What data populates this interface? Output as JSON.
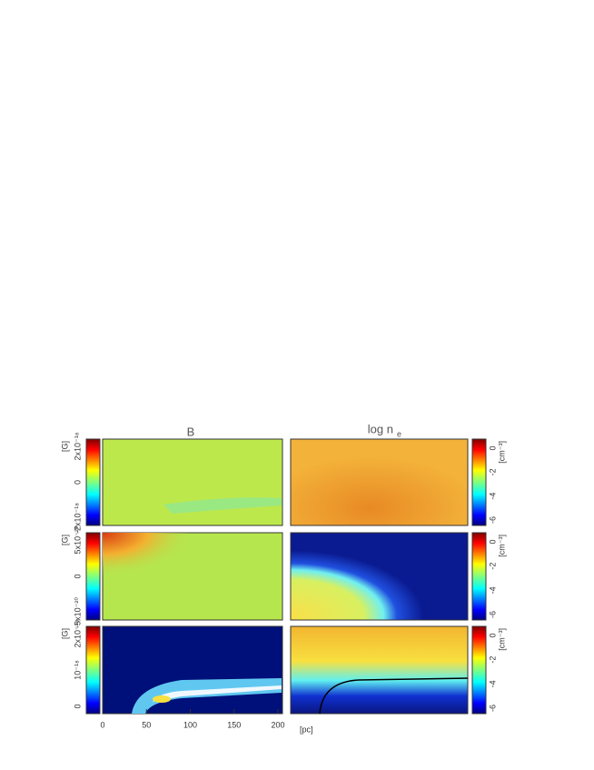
{
  "figure": {
    "titles": [
      "B",
      "log n",
      "e"
    ],
    "left_colorbars": [
      {
        "unit": "[G]",
        "labels": [
          "2x10⁻¹⁸",
          "0",
          "-2x10⁻¹⁸"
        ]
      },
      {
        "unit": "[G]",
        "labels": [
          "5x10⁻²⁰",
          "0",
          "-5x10⁻²⁰"
        ]
      },
      {
        "unit": "[G]",
        "labels": [
          "2x10⁻¹⁸",
          "10⁻¹⁸",
          "0"
        ]
      }
    ],
    "right_colorbars": [
      {
        "unit": "[cm⁻³]",
        "labels": [
          "0",
          "-2",
          "-4",
          "-6"
        ]
      },
      {
        "unit": "[cm⁻³]",
        "labels": [
          "0",
          "-2",
          "-4",
          "-6"
        ]
      },
      {
        "unit": "[cm⁻³]",
        "labels": [
          "0",
          "-2",
          "-4",
          "-6"
        ]
      }
    ],
    "x_axis": {
      "ticks": [
        0,
        50,
        100,
        150,
        200
      ],
      "label": "[pc]"
    }
  }
}
